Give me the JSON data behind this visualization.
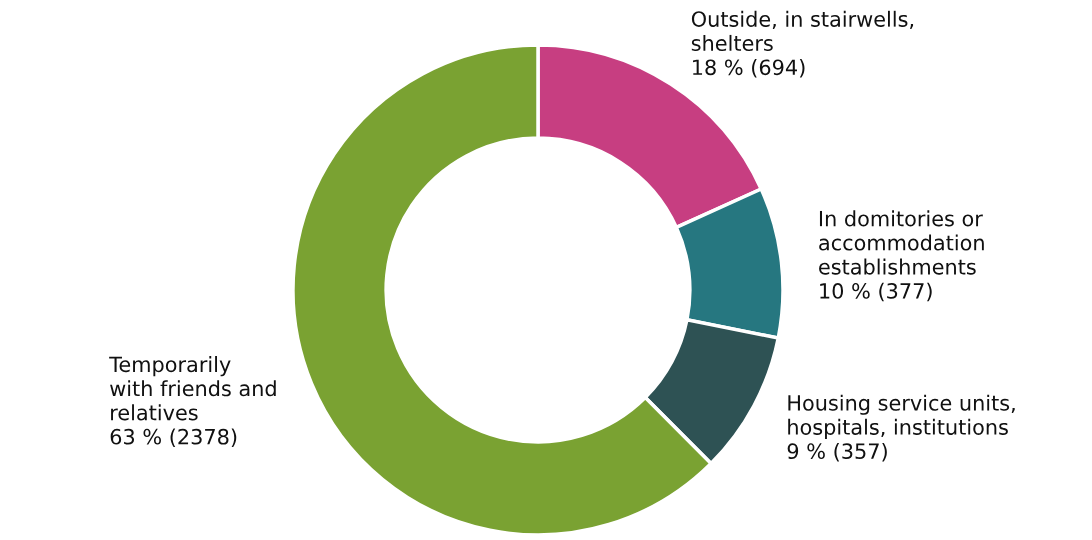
{
  "chart_data": {
    "type": "donut",
    "categories": [
      "Outside, in stairwells,\nshelters",
      "In domitories or\naccommodation\nestablishments",
      "Housing service units,\nhospitals, institutions",
      "Temporarily\nwith friends and\nrelatives"
    ],
    "values": [
      694,
      377,
      357,
      2378
    ],
    "value_labels": [
      "18 % (694)",
      "10 % (377)",
      "9 % (357)",
      "63 % (2378)"
    ],
    "colors": [
      "#c73e81",
      "#267780",
      "#2e5254",
      "#7aa232"
    ],
    "legend": false
  }
}
